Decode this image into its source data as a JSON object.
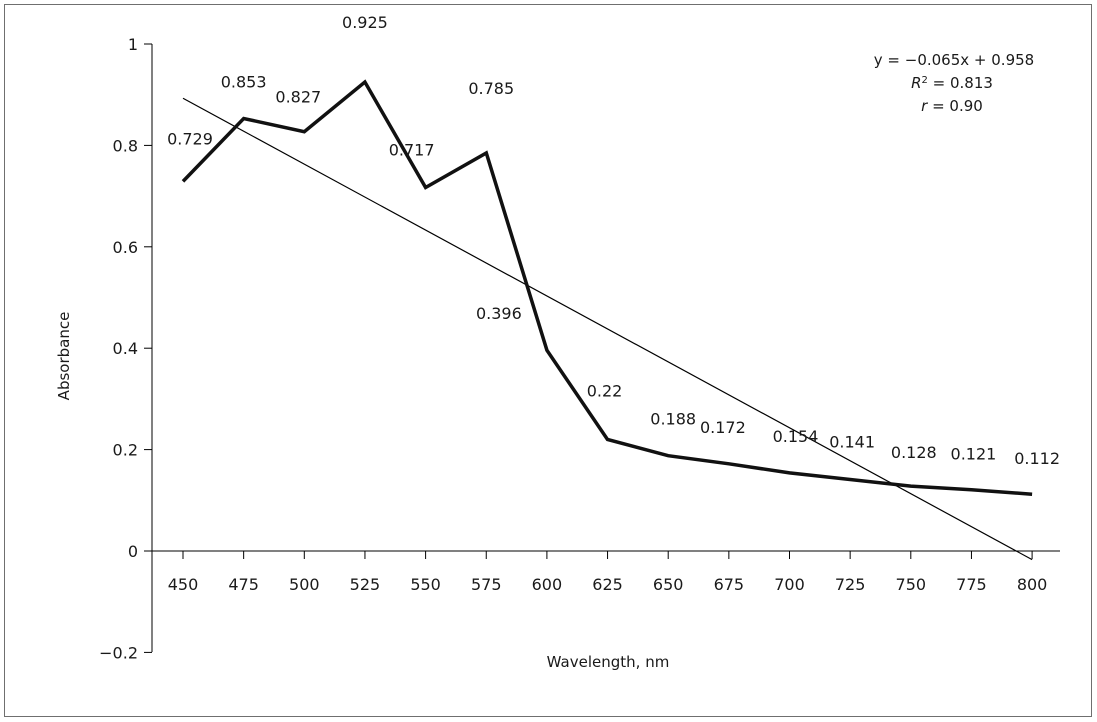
{
  "chart_data": {
    "type": "line",
    "xlabel": "Wavelength, nm",
    "ylabel": "Absorbance",
    "x": [
      450,
      475,
      500,
      525,
      550,
      575,
      600,
      625,
      650,
      675,
      700,
      725,
      750,
      775,
      800
    ],
    "x_tick_labels": [
      "450",
      "475",
      "500",
      "525",
      "550",
      "575",
      "600",
      "625",
      "650",
      "675",
      "700",
      "725",
      "750",
      "775",
      "800"
    ],
    "y_tick_labels": [
      "1",
      "0.8",
      "0.6",
      "0.4",
      "0.2",
      "0",
      "−0.2"
    ],
    "y_ticks": [
      1,
      0.8,
      0.6,
      0.4,
      0.2,
      0,
      -0.2
    ],
    "ylim": [
      -0.2,
      1
    ],
    "series": [
      {
        "values": [
          0.729,
          0.853,
          0.827,
          0.925,
          0.717,
          0.785,
          0.396,
          0.22,
          0.188,
          0.172,
          0.154,
          0.141,
          0.128,
          0.121,
          0.112
        ],
        "value_labels": [
          "0.729",
          "0.853",
          "0.827",
          "0.925",
          "0.717",
          "0.785",
          "0.396",
          "0.22",
          "0.188",
          "0.172",
          "0.154",
          "0.141",
          "0.128",
          "0.121",
          "0.112"
        ]
      }
    ],
    "trendline": {
      "slope": -0.065,
      "intercept": 0.958,
      "equation_text": "y = −0.065x + 0.958",
      "r2_symbol": "R",
      "r2_sup": "2",
      "r2_rest": " = 0.813",
      "r_symbol": "r",
      "r_rest": " = 0.90"
    },
    "grid": false,
    "legend": "none"
  }
}
